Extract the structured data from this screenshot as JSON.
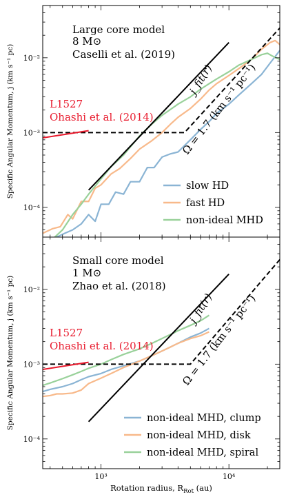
{
  "figure": {
    "shared_xlabel": "Rotation radius, R",
    "shared_xlabel_sub": "Rot",
    "shared_xlabel_unit": " (au)"
  },
  "chart_data": [
    {
      "type": "line",
      "panel": "top",
      "x_scale": "log",
      "y_scale": "log",
      "xlim": [
        350,
        25000
      ],
      "ylim": [
        4e-05,
        0.05
      ],
      "ylabel": "Specific Angular Momentum, j (km s⁻¹ pc)",
      "x_ticks": [
        {
          "value": 1000,
          "label": "10³"
        },
        {
          "value": 10000,
          "label": "10⁴"
        }
      ],
      "y_ticks": [
        {
          "value": 0.0001,
          "label": "10⁻⁴"
        },
        {
          "value": 0.001,
          "label": "10⁻³"
        },
        {
          "value": 0.01,
          "label": "10⁻²"
        }
      ],
      "annotations": {
        "model_line1": "Large core model",
        "model_line2": "8 M⊙",
        "reference": "Caselli et al. (2019)",
        "obs_name": "L1527",
        "obs_reference": "Ohashi et al. (2014)",
        "jfit_label": "j_fit(r)",
        "omega_label": "Ω = 1.7 (km s⁻¹ pc⁻¹)"
      },
      "legend": {
        "placement": "lower-right"
      },
      "series": [
        {
          "name": "slow HD",
          "color": "#8ab4d4",
          "x": [
            350,
            450,
            520,
            600,
            700,
            800,
            900,
            1000,
            1150,
            1300,
            1500,
            1700,
            2000,
            2300,
            2600,
            3000,
            3500,
            4000,
            5000,
            6000,
            7000,
            8000,
            10000,
            12000,
            15000,
            18000,
            21000,
            25000
          ],
          "y": [
            3.2e-05,
            4e-05,
            4.5e-05,
            5e-05,
            6e-05,
            8e-05,
            6.5e-05,
            0.00011,
            0.00011,
            0.00016,
            0.00015,
            0.00022,
            0.00022,
            0.00034,
            0.00034,
            0.00047,
            0.00052,
            0.00055,
            0.0008,
            0.0011,
            0.0014,
            0.0018,
            0.0024,
            0.0032,
            0.0045,
            0.006,
            0.0085,
            0.0125
          ]
        },
        {
          "name": "fast HD",
          "color": "#f8b98a",
          "x": [
            350,
            420,
            480,
            550,
            600,
            700,
            800,
            900,
            1000,
            1200,
            1400,
            1700,
            2000,
            2500,
            3000,
            3500,
            4000,
            5000,
            6000,
            7000,
            8000,
            10000,
            12000,
            15000,
            18000,
            21000,
            23000,
            25000
          ],
          "y": [
            4.5e-05,
            5.2e-05,
            5.5e-05,
            8e-05,
            7e-05,
            0.00012,
            0.00012,
            0.00018,
            0.0002,
            0.00028,
            0.00033,
            0.00045,
            0.0006,
            0.00078,
            0.001,
            0.0013,
            0.0016,
            0.0021,
            0.0028,
            0.0037,
            0.0045,
            0.0058,
            0.0072,
            0.0095,
            0.013,
            0.016,
            0.017,
            0.015
          ]
        },
        {
          "name": "non-ideal MHD",
          "color": "#99d19a",
          "x": [
            350,
            400,
            500,
            600,
            700,
            800,
            1000,
            1200,
            1500,
            2000,
            2500,
            3000,
            4000,
            5000,
            6000,
            7000,
            8000,
            10000,
            12000,
            15000,
            18000,
            20000,
            22000,
            25000
          ],
          "y": [
            2.8e-05,
            3.5e-05,
            5e-05,
            8e-05,
            0.00011,
            0.00015,
            0.00024,
            0.00035,
            0.0005,
            0.0009,
            0.0013,
            0.0017,
            0.0024,
            0.003,
            0.0038,
            0.0045,
            0.0052,
            0.0065,
            0.008,
            0.0095,
            0.011,
            0.0115,
            0.0105,
            0.0095
          ]
        }
      ],
      "reference_lines": [
        {
          "id": "jfit",
          "style": "solid",
          "color": "#000000",
          "x": [
            800,
            10000
          ],
          "y": [
            0.00017,
            0.016
          ]
        },
        {
          "id": "omega",
          "style": "dashed",
          "color": "#000000",
          "x": [
            350,
            4500,
            25000
          ],
          "y": [
            0.001,
            0.001,
            0.025
          ]
        },
        {
          "id": "l1527",
          "style": "solid",
          "color": "#e8192c",
          "x": [
            350,
            800
          ],
          "y": [
            0.00085,
            0.00106
          ]
        }
      ]
    },
    {
      "type": "line",
      "panel": "bottom",
      "x_scale": "log",
      "y_scale": "log",
      "xlim": [
        350,
        25000
      ],
      "ylim": [
        4e-05,
        0.05
      ],
      "xlabel": "Rotation radius, R_Rot (au)",
      "ylabel": "Specific Angular Momentum, j (km s⁻¹ pc)",
      "x_ticks": [
        {
          "value": 1000,
          "label": "10³"
        },
        {
          "value": 10000,
          "label": "10⁴"
        }
      ],
      "y_ticks": [
        {
          "value": 0.0001,
          "label": "10⁻⁴"
        },
        {
          "value": 0.001,
          "label": "10⁻³"
        },
        {
          "value": 0.01,
          "label": "10⁻²"
        }
      ],
      "annotations": {
        "model_line1": "Small core model",
        "model_line2": "1 M⊙",
        "reference": "Zhao et al. (2018)",
        "obs_name": "L1527",
        "obs_reference": "Ohashi et al. (2014)",
        "jfit_label": "j_fit(r)",
        "omega_label": "Ω = 1.7 (km s⁻¹ pc⁻¹)"
      },
      "legend": {
        "placement": "lower-right"
      },
      "series": [
        {
          "name": "non-ideal MHD, clump",
          "color": "#8ab4d4",
          "x": [
            350,
            400,
            500,
            600,
            700,
            800,
            1000,
            1200,
            1500,
            2000,
            2500,
            3000,
            3500,
            4000,
            5000,
            6000,
            7000
          ],
          "y": [
            0.00043,
            0.00046,
            0.0005,
            0.00055,
            0.00062,
            0.00068,
            0.00075,
            0.00085,
            0.00095,
            0.0011,
            0.0013,
            0.0015,
            0.0017,
            0.0019,
            0.0023,
            0.0026,
            0.003
          ]
        },
        {
          "name": "non-ideal MHD, disk",
          "color": "#f8b98a",
          "x": [
            350,
            400,
            450,
            500,
            600,
            700,
            800,
            1000,
            1200,
            1500,
            2000,
            2500,
            3000,
            3500,
            4000,
            5000,
            6000,
            7000
          ],
          "y": [
            0.00037,
            0.00038,
            0.0004,
            0.0004,
            0.00041,
            0.00045,
            0.00055,
            0.00065,
            0.00075,
            0.0009,
            0.0011,
            0.0013,
            0.0015,
            0.0017,
            0.0019,
            0.0022,
            0.0024,
            0.0027
          ]
        },
        {
          "name": "non-ideal MHD, spiral",
          "color": "#99d19a",
          "x": [
            350,
            400,
            500,
            600,
            700,
            800,
            1000,
            1200,
            1500,
            2000,
            2500,
            3000,
            3500,
            4000,
            5000,
            6000,
            7000
          ],
          "y": [
            0.00052,
            0.00056,
            0.00064,
            0.00072,
            0.0008,
            0.00088,
            0.001,
            0.00115,
            0.00135,
            0.0016,
            0.0019,
            0.0022,
            0.0025,
            0.0028,
            0.0033,
            0.0038,
            0.0045
          ]
        }
      ],
      "reference_lines": [
        {
          "id": "jfit",
          "style": "solid",
          "color": "#000000",
          "x": [
            800,
            10000
          ],
          "y": [
            0.00017,
            0.016
          ]
        },
        {
          "id": "omega",
          "style": "dashed",
          "color": "#000000",
          "x": [
            350,
            5000,
            25000
          ],
          "y": [
            0.001,
            0.001,
            0.025
          ]
        },
        {
          "id": "l1527",
          "style": "solid",
          "color": "#e8192c",
          "x": [
            350,
            800
          ],
          "y": [
            0.00085,
            0.00106
          ]
        }
      ]
    }
  ]
}
